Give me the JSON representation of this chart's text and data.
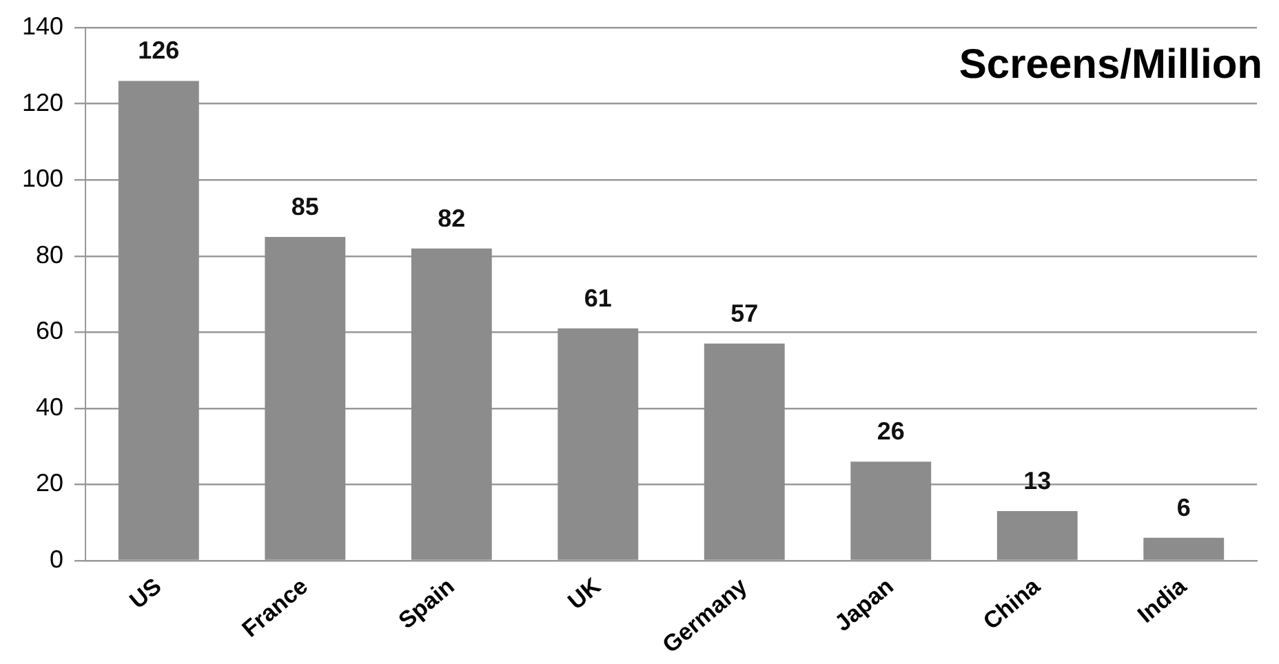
{
  "chart_data": {
    "type": "bar",
    "title": "Screens/Million",
    "categories": [
      "US",
      "France",
      "Spain",
      "UK",
      "Germany",
      "Japan",
      "China",
      "India"
    ],
    "values": [
      126,
      85,
      82,
      61,
      57,
      26,
      13,
      6
    ],
    "color": "#8c8c8c",
    "ylim": [
      0,
      140
    ],
    "yticks": [
      0,
      20,
      40,
      60,
      80,
      100,
      120,
      140
    ],
    "grid": "y",
    "data_labels": true
  }
}
